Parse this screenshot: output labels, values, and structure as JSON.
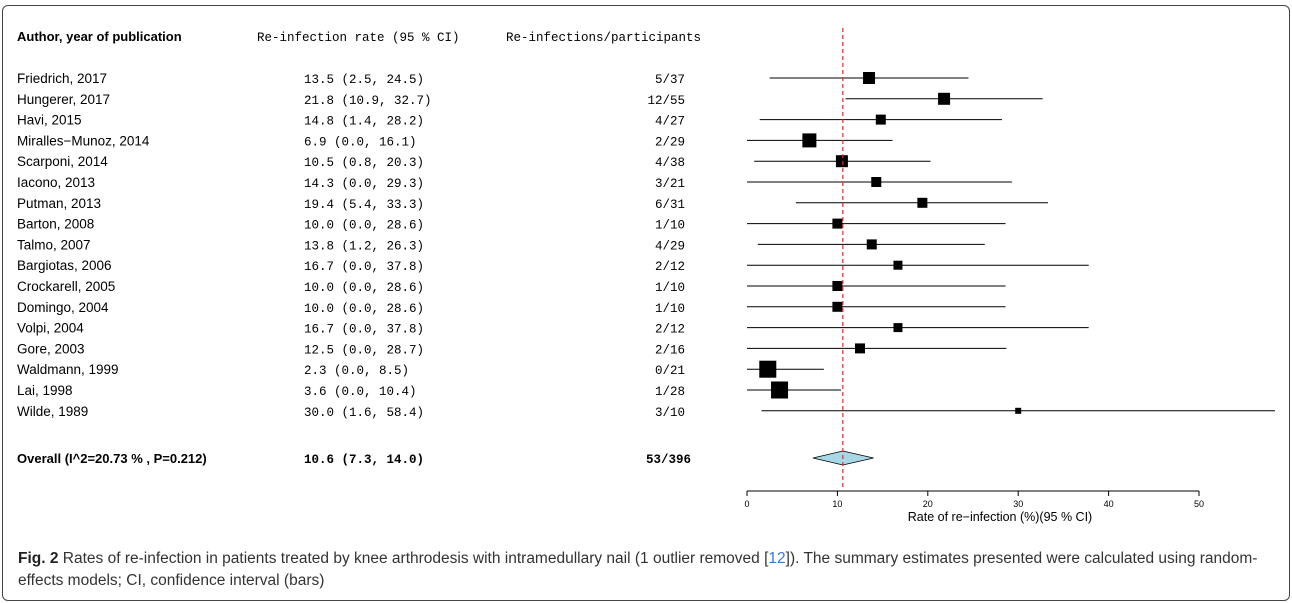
{
  "headers": {
    "study": "Author, year of publication",
    "rate": "Re-infection rate (95 % CI)",
    "events": "Re-infections/participants"
  },
  "chart_data": {
    "type": "forest",
    "studies": [
      {
        "label": "Friedrich, 2017",
        "ci_text": "13.5 (2.5, 24.5)",
        "events": "5/37",
        "est": 13.5,
        "lo": 2.5,
        "hi": 24.5,
        "weight": "medium"
      },
      {
        "label": "Hungerer, 2017",
        "ci_text": "21.8 (10.9, 32.7)",
        "events": "12/55",
        "est": 21.8,
        "lo": 10.9,
        "hi": 32.7,
        "weight": "medium"
      },
      {
        "label": "Havi, 2015",
        "ci_text": "14.8 (1.4, 28.2)",
        "events": "4/27",
        "est": 14.8,
        "lo": 1.4,
        "hi": 28.2,
        "weight": "small"
      },
      {
        "label": "Miralles−Munoz, 2014",
        "ci_text": "6.9 (0.0, 16.1)",
        "events": "2/29",
        "est": 6.9,
        "lo": 0.0,
        "hi": 16.1,
        "weight": "large"
      },
      {
        "label": "Scarponi, 2014",
        "ci_text": "10.5 (0.8, 20.3)",
        "events": "4/38",
        "est": 10.5,
        "lo": 0.8,
        "hi": 20.3,
        "weight": "medium"
      },
      {
        "label": "Iacono, 2013",
        "ci_text": "14.3 (0.0, 29.3)",
        "events": "3/21",
        "est": 14.3,
        "lo": 0.0,
        "hi": 29.3,
        "weight": "small"
      },
      {
        "label": "Putman, 2013",
        "ci_text": "19.4 (5.4, 33.3)",
        "events": "6/31",
        "est": 19.4,
        "lo": 5.4,
        "hi": 33.3,
        "weight": "small"
      },
      {
        "label": "Barton, 2008",
        "ci_text": "10.0 (0.0, 28.6)",
        "events": "1/10",
        "est": 10.0,
        "lo": 0.0,
        "hi": 28.6,
        "weight": "small"
      },
      {
        "label": "Talmo, 2007",
        "ci_text": "13.8 (1.2, 26.3)",
        "events": "4/29",
        "est": 13.8,
        "lo": 1.2,
        "hi": 26.3,
        "weight": "small"
      },
      {
        "label": "Bargiotas, 2006",
        "ci_text": "16.7 (0.0, 37.8)",
        "events": "2/12",
        "est": 16.7,
        "lo": 0.0,
        "hi": 37.8,
        "weight": "xsmall"
      },
      {
        "label": "Crockarell, 2005",
        "ci_text": "10.0 (0.0, 28.6)",
        "events": "1/10",
        "est": 10.0,
        "lo": 0.0,
        "hi": 28.6,
        "weight": "small"
      },
      {
        "label": "Domingo, 2004",
        "ci_text": "10.0 (0.0, 28.6)",
        "events": "1/10",
        "est": 10.0,
        "lo": 0.0,
        "hi": 28.6,
        "weight": "small"
      },
      {
        "label": "Volpi, 2004",
        "ci_text": "16.7 (0.0, 37.8)",
        "events": "2/12",
        "est": 16.7,
        "lo": 0.0,
        "hi": 37.8,
        "weight": "xsmall"
      },
      {
        "label": "Gore, 2003",
        "ci_text": "12.5 (0.0, 28.7)",
        "events": "2/16",
        "est": 12.5,
        "lo": 0.0,
        "hi": 28.7,
        "weight": "small"
      },
      {
        "label": "Waldmann, 1999",
        "ci_text": "2.3 (0.0, 8.5)",
        "events": "0/21",
        "est": 2.3,
        "lo": 0.0,
        "hi": 8.5,
        "weight": "xlarge"
      },
      {
        "label": "Lai, 1998",
        "ci_text": "3.6 (0.0, 10.4)",
        "events": "1/28",
        "est": 3.6,
        "lo": 0.0,
        "hi": 10.4,
        "weight": "xlarge"
      },
      {
        "label": "Wilde, 1989",
        "ci_text": "30.0 (1.6, 58.4)",
        "events": "3/10",
        "est": 30.0,
        "lo": 1.6,
        "hi": 58.4,
        "weight": "tiny"
      }
    ],
    "overall": {
      "label": "Overall (I^2=20.73 % , P=0.212)",
      "ci_text": "10.6 (7.3, 14.0)",
      "events": "53/396",
      "est": 10.6,
      "lo": 7.3,
      "hi": 14.0
    },
    "xticks": [
      0,
      10,
      20,
      30,
      40,
      50
    ],
    "xlim": [
      0,
      50
    ],
    "xlabel": "Rate of re−infection (%)(95 % CI)",
    "reference_line": {
      "value": 10.6,
      "style": "dashed",
      "color": "#e8262c"
    },
    "colors": {
      "marker": "#000000",
      "diamond_fill": "#a8d8e6",
      "ref_line": "#e8262c"
    }
  },
  "caption": {
    "label": "Fig. 2",
    "text_before_ref": "Rates of re-infection in patients treated by knee arthrodesis with intramedullary nail (1 outlier removed [",
    "ref": "12",
    "text_after_ref": "]). The summary estimates presented were calculated using random-effects models; CI, confidence interval (bars)"
  }
}
